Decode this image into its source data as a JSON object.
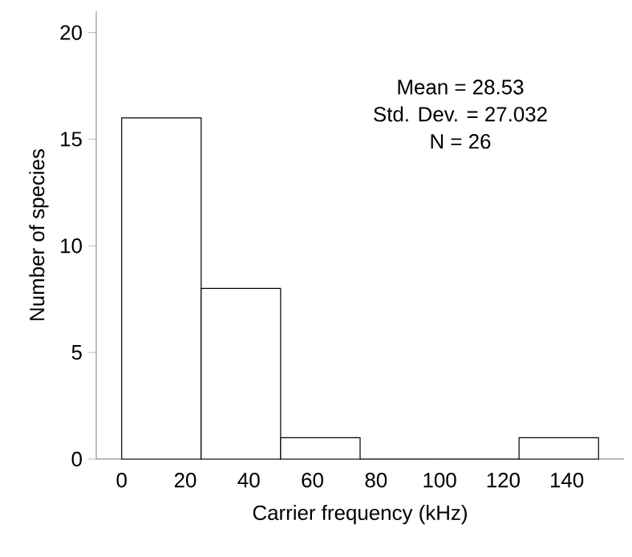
{
  "chart_data": {
    "type": "histogram",
    "xlabel": "Carrier frequency (kHz)",
    "ylabel": "Number of species",
    "bins": [
      0,
      25,
      50,
      75,
      100,
      125,
      150
    ],
    "values": [
      16,
      8,
      1,
      0,
      0,
      1
    ],
    "xlim": [
      -8,
      158
    ],
    "ylim": [
      0,
      21
    ],
    "xticks": [
      0,
      20,
      40,
      60,
      80,
      100,
      120,
      140
    ],
    "yticks": [
      0,
      5,
      10,
      15,
      20
    ],
    "annotations": [
      "Mean = 28.53",
      "Std. Dev. = 27.032",
      "N = 26"
    ]
  }
}
